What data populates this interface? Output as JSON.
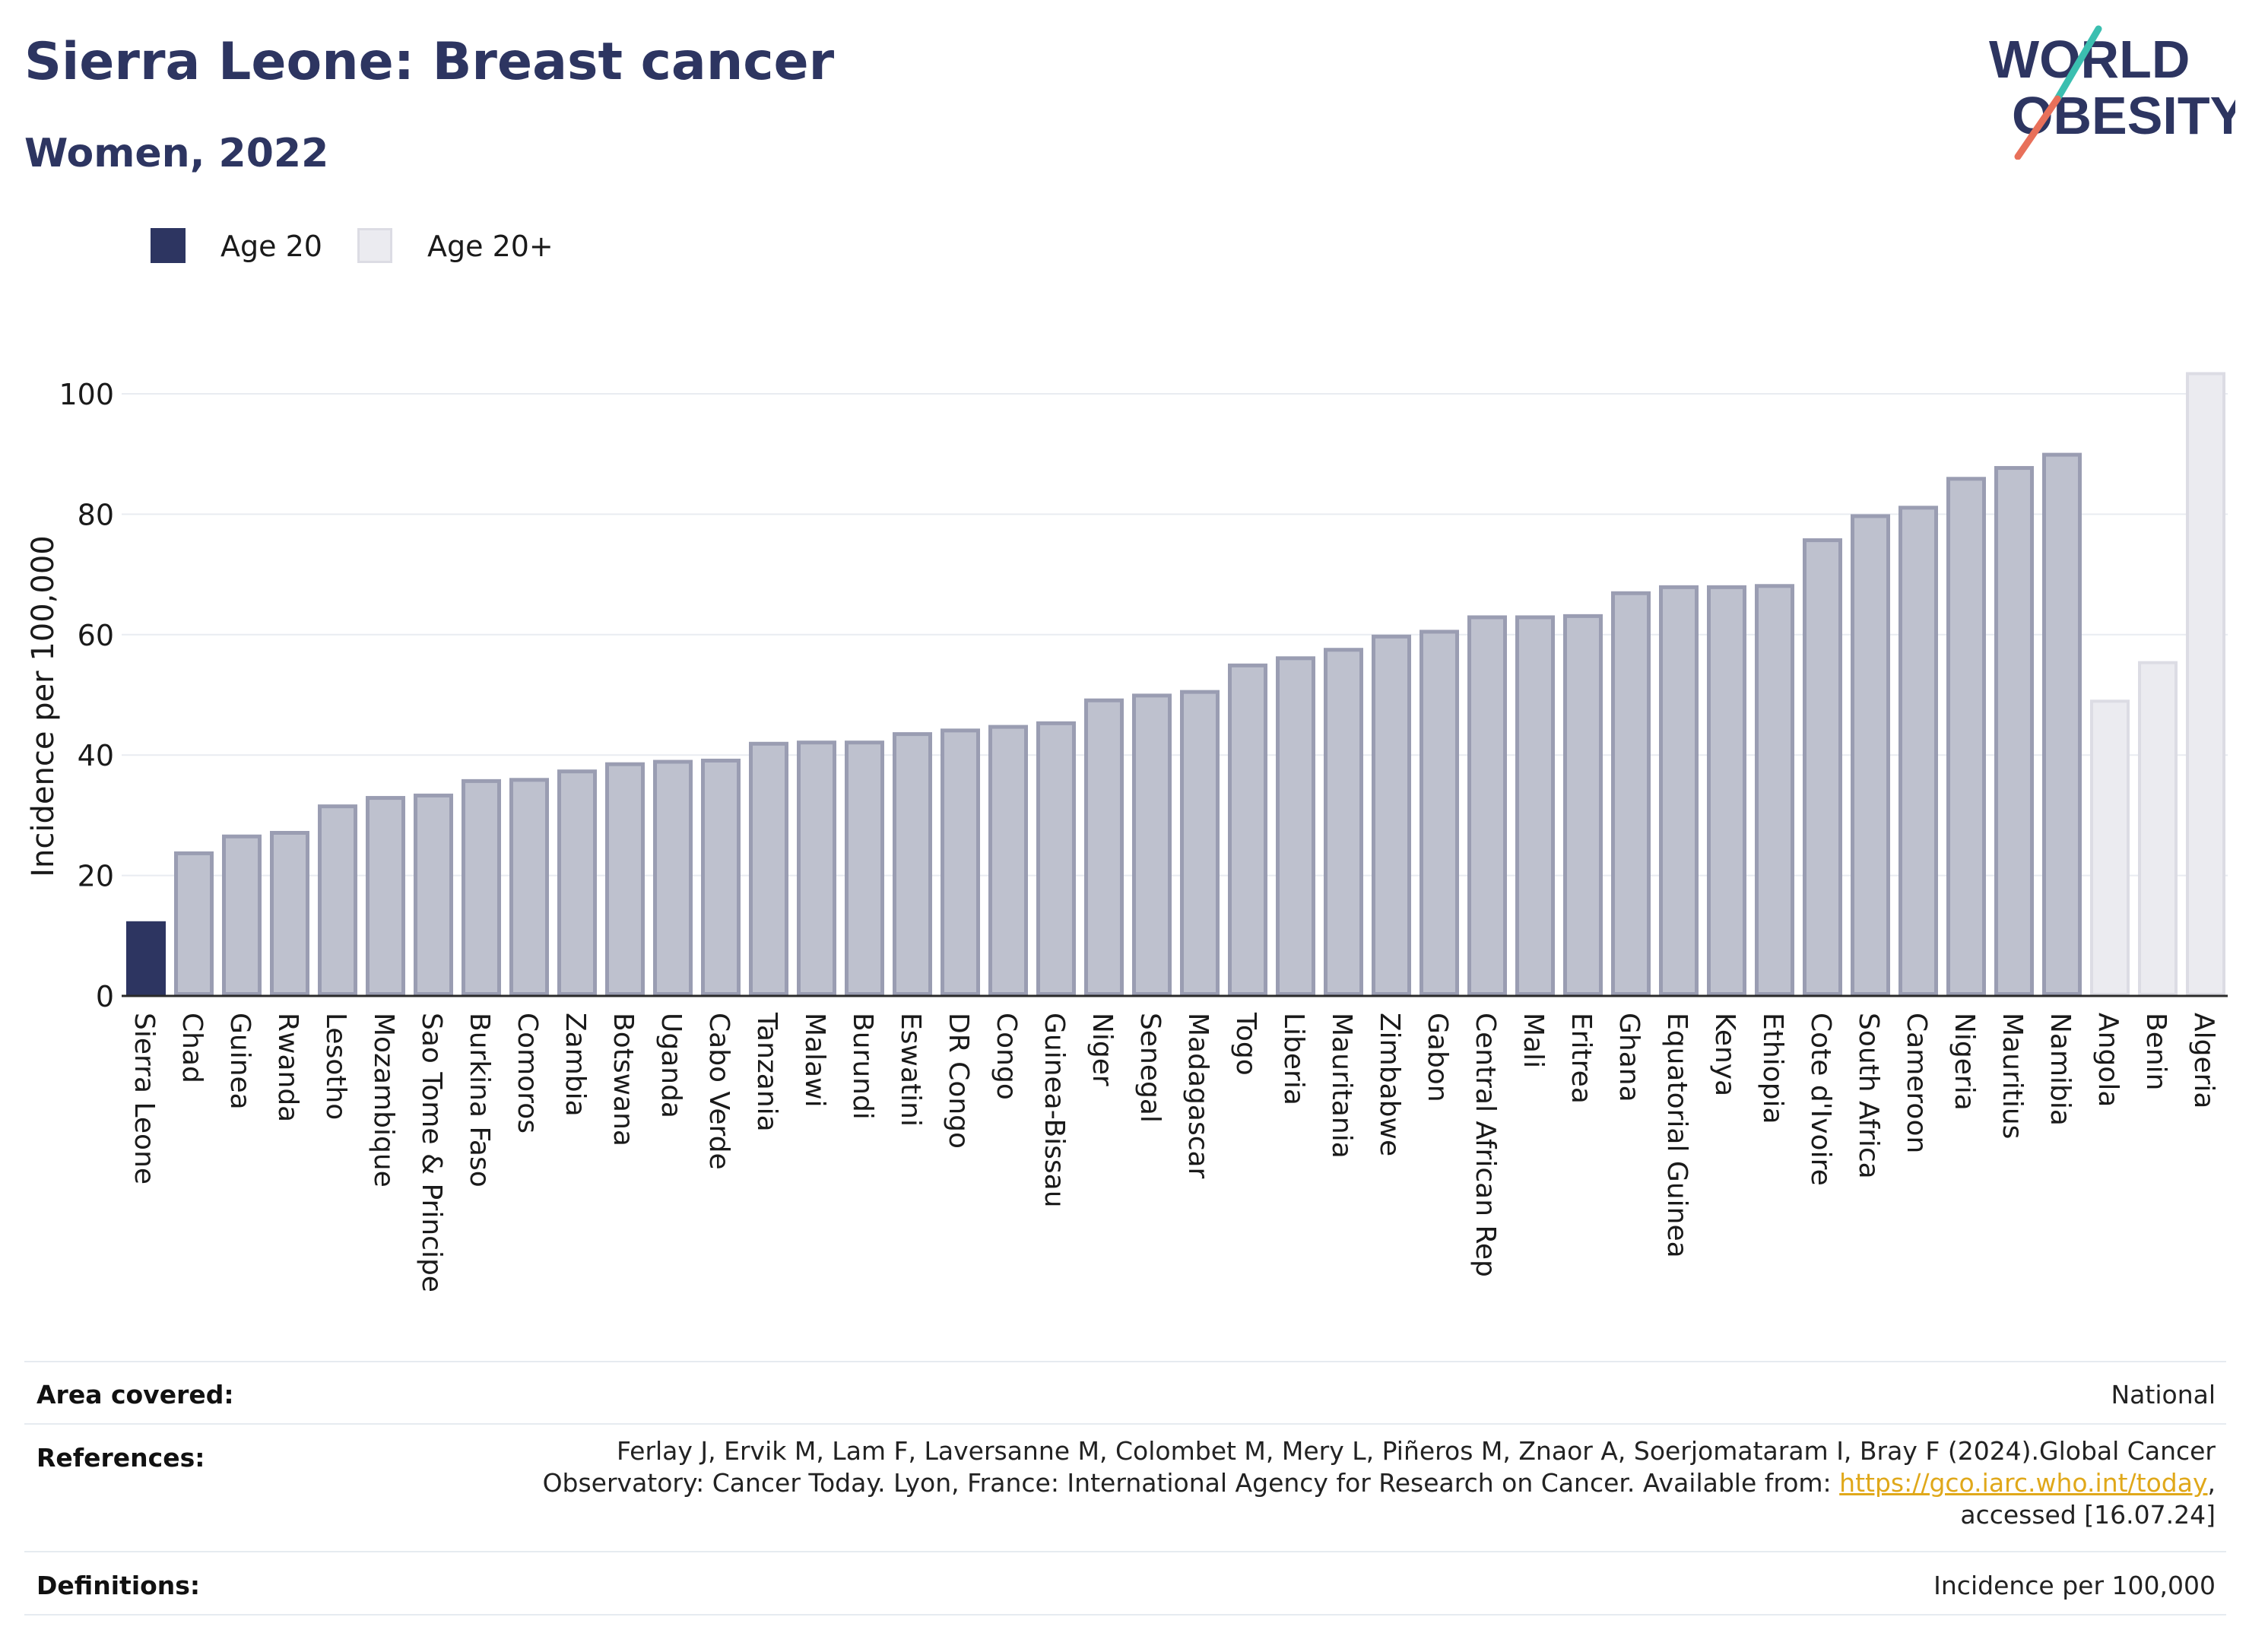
{
  "header": {
    "title": "Sierra Leone: Breast cancer",
    "subtitle": "Women, 2022"
  },
  "logo": {
    "line1": "WORLD",
    "line2": "OBESITY",
    "colors": {
      "text": "#2d3561",
      "slash_teal": "#3bbfb0",
      "slash_coral": "#e8705a"
    }
  },
  "legend": [
    {
      "label": "Age 20",
      "color": "#2d3561"
    },
    {
      "label": "Age 20+",
      "color": "#ebebf0"
    }
  ],
  "chart_data": {
    "type": "bar",
    "title": "Sierra Leone: Breast cancer",
    "subtitle": "Women, 2022",
    "ylabel": "Incidence per 100,000",
    "xlabel": "",
    "ylim": [
      0,
      106
    ],
    "yticks": [
      0,
      20,
      40,
      60,
      80,
      100
    ],
    "grid": true,
    "legend_position": "top-left",
    "colors": {
      "highlight": "#2d3561",
      "comparison_fill": "#bec1ce",
      "comparison_stroke": "#9a9db2",
      "age20plus_fill": "#ebebf0",
      "age20plus_stroke": "#dcdce4"
    },
    "categories": [
      "Sierra Leone",
      "Chad",
      "Guinea",
      "Rwanda",
      "Lesotho",
      "Mozambique",
      "Sao Tome & Principe",
      "Burkina Faso",
      "Comoros",
      "Zambia",
      "Botswana",
      "Uganda",
      "Cabo Verde",
      "Tanzania",
      "Malawi",
      "Burundi",
      "Eswatini",
      "DR Congo",
      "Congo",
      "Guinea-Bissau",
      "Niger",
      "Senegal",
      "Madagascar",
      "Togo",
      "Liberia",
      "Mauritania",
      "Zimbabwe",
      "Gabon",
      "Central African Rep",
      "Mali",
      "Eritrea",
      "Ghana",
      "Equatorial Guinea",
      "Kenya",
      "Ethiopia",
      "Cote d'Ivoire",
      "South Africa",
      "Cameroon",
      "Nigeria",
      "Mauritius",
      "Namibia",
      "Angola",
      "Benin",
      "Algeria"
    ],
    "values": [
      12.4,
      24.0,
      26.8,
      27.4,
      31.8,
      33.2,
      33.6,
      36.0,
      36.2,
      37.6,
      38.8,
      39.2,
      39.4,
      42.2,
      42.4,
      42.4,
      43.8,
      44.4,
      45.0,
      45.6,
      49.4,
      50.2,
      50.8,
      55.2,
      56.4,
      57.8,
      60.0,
      60.8,
      63.2,
      63.2,
      63.4,
      67.2,
      68.2,
      68.2,
      68.4,
      76.0,
      80.0,
      81.4,
      86.2,
      88.0,
      90.2,
      49.2,
      55.6,
      103.6
    ],
    "groups": [
      "Age 20",
      "comparison",
      "comparison",
      "comparison",
      "comparison",
      "comparison",
      "comparison",
      "comparison",
      "comparison",
      "comparison",
      "comparison",
      "comparison",
      "comparison",
      "comparison",
      "comparison",
      "comparison",
      "comparison",
      "comparison",
      "comparison",
      "comparison",
      "comparison",
      "comparison",
      "comparison",
      "comparison",
      "comparison",
      "comparison",
      "comparison",
      "comparison",
      "comparison",
      "comparison",
      "comparison",
      "comparison",
      "comparison",
      "comparison",
      "comparison",
      "comparison",
      "comparison",
      "comparison",
      "comparison",
      "comparison",
      "comparison",
      "Age 20+",
      "Age 20+",
      "Age 20+"
    ]
  },
  "meta": {
    "area_label": "Area covered:",
    "area_value": "National",
    "references_label": "References:",
    "references_line1": "Ferlay J, Ervik M, Lam F, Laversanne M, Colombet M, Mery L, Piñeros M, Znaor A, Soerjomataram I, Bray F (2024).Global Cancer",
    "references_line2": "Observatory: Cancer Today. Lyon, France: International Agency for Research on Cancer. Available from: ",
    "references_link": "https://gco.iarc.who.int/today",
    "references_line2_end": ",",
    "references_line3": "accessed [16.07.24]",
    "definitions_label": "Definitions:",
    "definitions_value": "Incidence per 100,000"
  }
}
